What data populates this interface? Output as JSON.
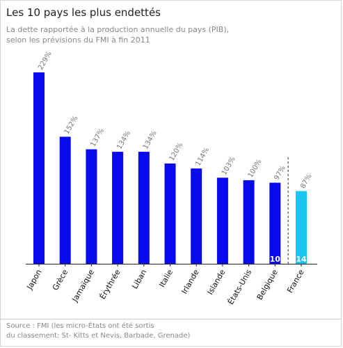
{
  "title": "Les 10 pays les plus endettés",
  "subtitle_lines": [
    "La dette rapportée à la production annuelle du pays (PIB),",
    "selon les prévisions du FMI à fin 2011"
  ],
  "source_lines": [
    "Source : FMI (les micro-États ont été sortis",
    "du classement: St- Kitts et Nevis, Barbade, Grenade)"
  ],
  "colors": {
    "bar": "#0a0aee",
    "highlight": "#19c6f2",
    "axis": "#222222",
    "value_label": "#777777",
    "category_label": "#111111"
  },
  "chart_data": {
    "type": "bar",
    "title": "Les 10 pays les plus endettés",
    "categories": [
      "Japon",
      "Grèce",
      "Jamaïque",
      "Érythrée",
      "Liban",
      "Italie",
      "Irlande",
      "Islande",
      "États-Unis",
      "Belgique",
      "France"
    ],
    "values": [
      229,
      152,
      137,
      134,
      134,
      120,
      114,
      103,
      100,
      97,
      87
    ],
    "value_labels": [
      "229%",
      "152%",
      "137%",
      "134%",
      "134%",
      "120%",
      "114%",
      "103%",
      "100%",
      "97%",
      "87%"
    ],
    "highlight_index": 10,
    "rank_badges": [
      {
        "index": 9,
        "text": "10"
      },
      {
        "index": 10,
        "text": "14"
      }
    ],
    "divider_after_index": 9,
    "ylim": [
      0,
      229
    ],
    "grid": false,
    "legend": "none"
  }
}
